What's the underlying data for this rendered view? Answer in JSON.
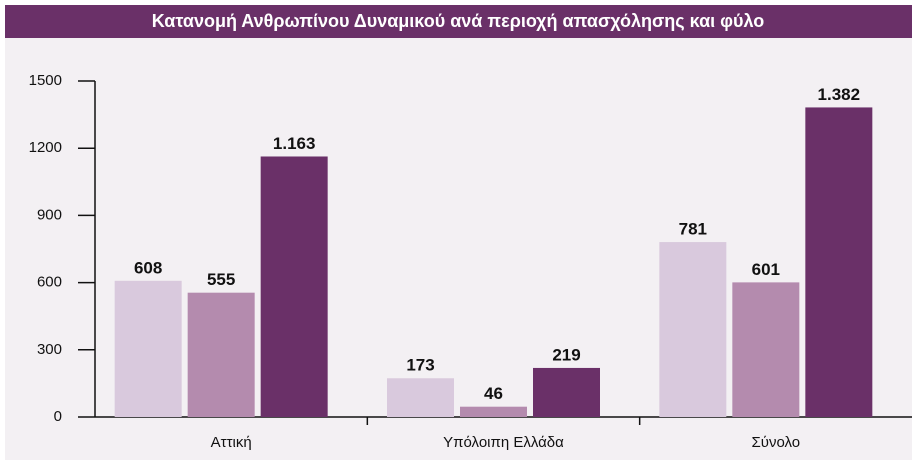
{
  "chart_data": {
    "type": "bar",
    "title": "Κατανομή Ανθρωπίνου Δυναμικού ανά περιοχή απασχόλησης και φύλο",
    "categories": [
      "Αττική",
      "Υπόλοιπη Ελλάδα",
      "Σύνολο"
    ],
    "series": [
      {
        "color": "#d9c9dd",
        "values": [
          608,
          173,
          781
        ],
        "value_labels": [
          "608",
          "173",
          "781"
        ]
      },
      {
        "color": "#b48bae",
        "values": [
          555,
          46,
          601
        ],
        "value_labels": [
          "555",
          "46",
          "601"
        ]
      },
      {
        "color": "#6a3068",
        "values": [
          1163,
          219,
          1382
        ],
        "value_labels": [
          "1.163",
          "219",
          "1.382"
        ]
      }
    ],
    "ylim": [
      0,
      1500
    ],
    "yticks": [
      0,
      300,
      600,
      900,
      1200,
      1500
    ],
    "grid": false
  }
}
